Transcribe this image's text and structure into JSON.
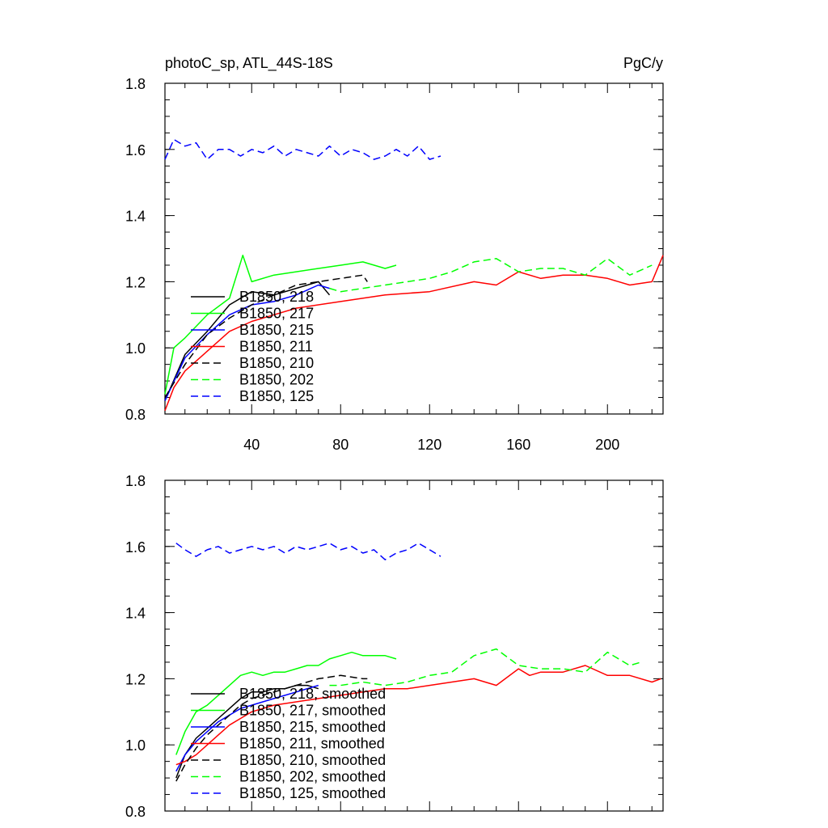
{
  "header": {
    "title": "photoC_sp, ATL_44S-18S",
    "units": "PgC/y"
  },
  "chart_data": [
    {
      "type": "line",
      "title": "photoC_sp, ATL_44S-18S",
      "units": "PgC/y",
      "xlim": [
        1,
        225
      ],
      "ylim": [
        0.8,
        1.8
      ],
      "xticks": [
        40,
        80,
        120,
        160,
        200
      ],
      "yticks": [
        0.8,
        1.0,
        1.2,
        1.4,
        1.6,
        1.8
      ],
      "xtick_labels": [
        "40",
        "80",
        "120",
        "160",
        "200"
      ],
      "ytick_labels": [
        "0.8",
        "1.0",
        "1.2",
        "1.4",
        "1.6",
        "1.8"
      ],
      "legend_position": "lower-left",
      "series": [
        {
          "name": "B1850, 218",
          "color": "#000000",
          "dash": "solid",
          "x": [
            1,
            10,
            20,
            30,
            40,
            50,
            60,
            70,
            75
          ],
          "y": [
            0.84,
            0.98,
            1.05,
            1.13,
            1.17,
            1.16,
            1.18,
            1.2,
            1.16
          ]
        },
        {
          "name": "B1850, 217",
          "color": "#00ff00",
          "dash": "solid",
          "x": [
            1,
            5,
            10,
            20,
            30,
            36,
            40,
            50,
            60,
            70,
            80,
            90,
            100,
            105
          ],
          "y": [
            0.86,
            1.0,
            1.03,
            1.1,
            1.15,
            1.28,
            1.2,
            1.22,
            1.23,
            1.24,
            1.25,
            1.26,
            1.24,
            1.25
          ]
        },
        {
          "name": "B1850, 215",
          "color": "#0000ff",
          "dash": "solid",
          "x": [
            1,
            10,
            20,
            30,
            40,
            50,
            60,
            70,
            75
          ],
          "y": [
            0.84,
            0.97,
            1.04,
            1.1,
            1.13,
            1.14,
            1.16,
            1.19,
            1.18
          ]
        },
        {
          "name": "B1850, 211",
          "color": "#ff0000",
          "dash": "solid",
          "x": [
            1,
            5,
            10,
            20,
            30,
            40,
            50,
            60,
            80,
            100,
            120,
            140,
            150,
            160,
            170,
            180,
            190,
            200,
            210,
            220,
            225
          ],
          "y": [
            0.81,
            0.88,
            0.93,
            0.99,
            1.05,
            1.08,
            1.1,
            1.12,
            1.14,
            1.16,
            1.17,
            1.2,
            1.19,
            1.23,
            1.21,
            1.22,
            1.22,
            1.21,
            1.19,
            1.2,
            1.28
          ]
        },
        {
          "name": "B1850, 210",
          "color": "#000000",
          "dash": "dashed",
          "x": [
            1,
            10,
            20,
            30,
            40,
            50,
            60,
            70,
            80,
            90,
            92
          ],
          "y": [
            0.85,
            0.95,
            1.04,
            1.09,
            1.13,
            1.16,
            1.19,
            1.2,
            1.21,
            1.22,
            1.2
          ]
        },
        {
          "name": "B1850, 202",
          "color": "#00ff00",
          "dash": "dashed",
          "x": [
            75,
            80,
            90,
            100,
            110,
            120,
            130,
            140,
            150,
            160,
            170,
            180,
            190,
            200,
            210,
            220
          ],
          "y": [
            1.18,
            1.17,
            1.18,
            1.19,
            1.2,
            1.21,
            1.23,
            1.26,
            1.27,
            1.23,
            1.24,
            1.24,
            1.22,
            1.27,
            1.22,
            1.25
          ]
        },
        {
          "name": "B1850, 125",
          "color": "#0000ff",
          "dash": "dashed",
          "x": [
            1,
            5,
            10,
            15,
            20,
            25,
            30,
            35,
            40,
            45,
            50,
            55,
            60,
            65,
            70,
            75,
            80,
            85,
            90,
            95,
            100,
            105,
            110,
            115,
            120,
            125
          ],
          "y": [
            1.57,
            1.63,
            1.61,
            1.62,
            1.57,
            1.6,
            1.6,
            1.58,
            1.6,
            1.59,
            1.61,
            1.58,
            1.6,
            1.59,
            1.58,
            1.61,
            1.58,
            1.6,
            1.59,
            1.57,
            1.58,
            1.6,
            1.58,
            1.61,
            1.57,
            1.58
          ]
        }
      ]
    },
    {
      "type": "line",
      "title": "",
      "units": "",
      "xlim": [
        1,
        225
      ],
      "ylim": [
        0.8,
        1.8
      ],
      "yticks": [
        0.8,
        1.0,
        1.2,
        1.4,
        1.6,
        1.8
      ],
      "ytick_labels": [
        "0.8",
        "1.0",
        "1.2",
        "1.4",
        "1.6",
        "1.8"
      ],
      "legend_position": "lower-left",
      "series": [
        {
          "name": "B1850, 218, smoothed",
          "color": "#000000",
          "dash": "solid",
          "x": [
            6,
            10,
            15,
            20,
            25,
            30,
            35,
            40,
            45,
            50,
            55,
            60,
            65,
            70
          ],
          "y": [
            0.9,
            0.97,
            1.02,
            1.05,
            1.08,
            1.11,
            1.14,
            1.16,
            1.16,
            1.17,
            1.17,
            1.18,
            1.18,
            1.17
          ]
        },
        {
          "name": "B1850, 217, smoothed",
          "color": "#00ff00",
          "dash": "solid",
          "x": [
            6,
            10,
            15,
            20,
            25,
            30,
            35,
            40,
            45,
            50,
            55,
            60,
            65,
            70,
            75,
            80,
            85,
            90,
            95,
            100,
            105
          ],
          "y": [
            0.97,
            1.04,
            1.1,
            1.12,
            1.15,
            1.18,
            1.21,
            1.22,
            1.21,
            1.22,
            1.22,
            1.23,
            1.24,
            1.24,
            1.26,
            1.27,
            1.28,
            1.27,
            1.27,
            1.27,
            1.26
          ]
        },
        {
          "name": "B1850, 215, smoothed",
          "color": "#0000ff",
          "dash": "solid",
          "x": [
            6,
            10,
            15,
            20,
            25,
            30,
            35,
            40,
            45,
            50,
            55,
            60,
            65,
            70
          ],
          "y": [
            0.92,
            0.97,
            1.01,
            1.04,
            1.07,
            1.09,
            1.11,
            1.12,
            1.13,
            1.14,
            1.15,
            1.16,
            1.17,
            1.18
          ]
        },
        {
          "name": "B1850, 211, smoothed",
          "color": "#ff0000",
          "dash": "solid",
          "x": [
            6,
            10,
            15,
            20,
            25,
            30,
            35,
            40,
            50,
            60,
            70,
            80,
            90,
            100,
            110,
            120,
            130,
            140,
            150,
            160,
            165,
            170,
            180,
            190,
            200,
            210,
            220,
            224
          ],
          "y": [
            0.94,
            0.95,
            0.97,
            1.0,
            1.03,
            1.06,
            1.08,
            1.1,
            1.12,
            1.13,
            1.14,
            1.15,
            1.16,
            1.17,
            1.17,
            1.18,
            1.19,
            1.2,
            1.18,
            1.23,
            1.21,
            1.22,
            1.22,
            1.24,
            1.21,
            1.21,
            1.19,
            1.2
          ]
        },
        {
          "name": "B1850, 210, smoothed",
          "color": "#000000",
          "dash": "dashed",
          "x": [
            6,
            10,
            15,
            20,
            25,
            30,
            35,
            40,
            50,
            60,
            70,
            80,
            90,
            92
          ],
          "y": [
            0.89,
            0.94,
            0.99,
            1.03,
            1.06,
            1.09,
            1.12,
            1.14,
            1.16,
            1.18,
            1.2,
            1.21,
            1.2,
            1.2
          ]
        },
        {
          "name": "B1850, 202, smoothed",
          "color": "#00ff00",
          "dash": "dashed",
          "x": [
            75,
            80,
            90,
            100,
            110,
            120,
            130,
            140,
            150,
            160,
            170,
            180,
            190,
            200,
            210,
            215
          ],
          "y": [
            1.18,
            1.18,
            1.19,
            1.18,
            1.19,
            1.21,
            1.22,
            1.27,
            1.29,
            1.24,
            1.23,
            1.23,
            1.22,
            1.28,
            1.24,
            1.25
          ]
        },
        {
          "name": "B1850, 125, smoothed",
          "color": "#0000ff",
          "dash": "dashed",
          "x": [
            6,
            10,
            15,
            20,
            25,
            30,
            35,
            40,
            45,
            50,
            55,
            60,
            65,
            70,
            75,
            80,
            85,
            90,
            95,
            100,
            105,
            110,
            115,
            120,
            125
          ],
          "y": [
            1.61,
            1.59,
            1.57,
            1.59,
            1.6,
            1.58,
            1.59,
            1.6,
            1.59,
            1.6,
            1.58,
            1.6,
            1.59,
            1.6,
            1.61,
            1.59,
            1.6,
            1.58,
            1.59,
            1.56,
            1.58,
            1.59,
            1.61,
            1.59,
            1.57
          ]
        }
      ]
    }
  ]
}
